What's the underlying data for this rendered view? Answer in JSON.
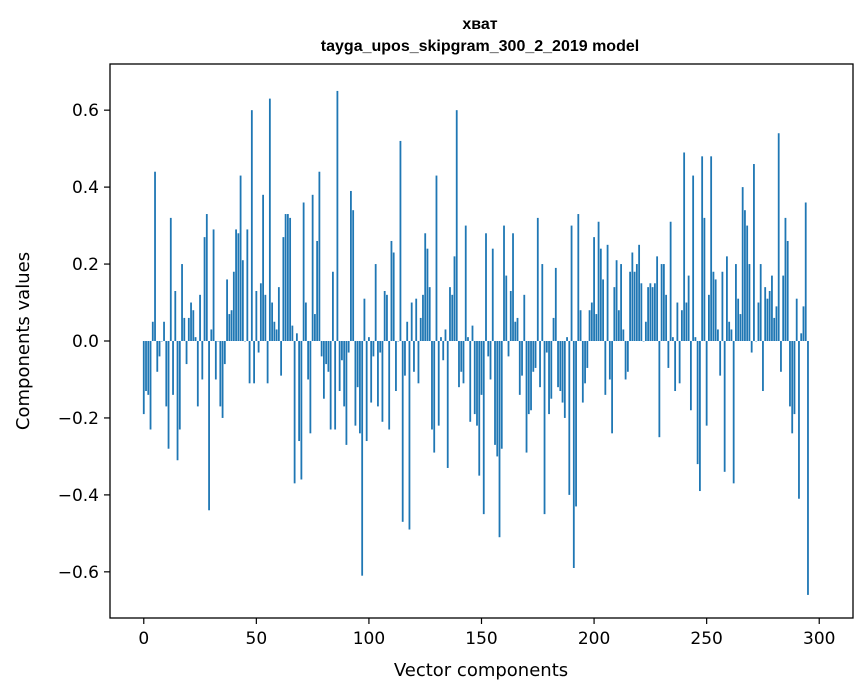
{
  "chart_data": {
    "type": "bar",
    "title": "хват",
    "subtitle": "tayga_upos_skipgram_300_2_2019 model",
    "xlabel": "Vector components",
    "ylabel": "Components values",
    "xlim": [
      -15,
      315
    ],
    "ylim": [
      -0.72,
      0.72
    ],
    "xticks": [
      0,
      50,
      100,
      150,
      200,
      250,
      300
    ],
    "yticks": [
      -0.6,
      -0.4,
      -0.2,
      0.0,
      0.2,
      0.4,
      0.6
    ],
    "ytick_labels": [
      "−0.6",
      "−0.4",
      "−0.2",
      "0.0",
      "0.2",
      "0.4",
      "0.6"
    ],
    "bar_color": "#1f77b4",
    "values": [
      -0.19,
      -0.13,
      -0.14,
      -0.23,
      0.05,
      0.44,
      -0.08,
      -0.04,
      0.0,
      0.05,
      -0.17,
      -0.28,
      0.32,
      -0.14,
      0.13,
      -0.31,
      -0.23,
      0.2,
      0.06,
      -0.06,
      0.06,
      0.1,
      0.08,
      0.01,
      -0.17,
      0.12,
      -0.1,
      0.27,
      0.33,
      -0.44,
      0.03,
      0.29,
      -0.1,
      0.0,
      -0.17,
      -0.2,
      -0.06,
      0.16,
      0.07,
      0.08,
      0.18,
      0.29,
      0.28,
      0.43,
      0.21,
      0.0,
      0.29,
      -0.11,
      0.6,
      -0.11,
      0.13,
      -0.03,
      0.15,
      0.38,
      0.12,
      -0.11,
      0.63,
      0.1,
      0.05,
      0.03,
      0.14,
      -0.09,
      0.27,
      0.33,
      0.33,
      0.32,
      0.04,
      -0.37,
      0.02,
      -0.26,
      -0.36,
      0.36,
      0.1,
      -0.1,
      -0.24,
      0.38,
      0.07,
      0.26,
      0.44,
      -0.04,
      -0.15,
      -0.06,
      -0.08,
      -0.23,
      0.18,
      -0.23,
      0.65,
      -0.13,
      -0.05,
      -0.17,
      -0.27,
      -0.03,
      0.39,
      0.34,
      -0.22,
      -0.12,
      -0.24,
      -0.61,
      0.11,
      -0.26,
      0.01,
      -0.16,
      -0.04,
      0.2,
      -0.17,
      -0.03,
      -0.21,
      0.13,
      0.12,
      -0.23,
      0.26,
      0.23,
      -0.13,
      0.0,
      0.52,
      -0.47,
      -0.09,
      0.05,
      -0.49,
      0.1,
      -0.08,
      0.11,
      -0.11,
      0.06,
      0.12,
      0.28,
      0.24,
      0.14,
      -0.23,
      -0.29,
      0.43,
      -0.22,
      0.01,
      -0.05,
      0.03,
      -0.33,
      0.14,
      0.12,
      0.22,
      0.6,
      -0.12,
      -0.08,
      -0.11,
      0.3,
      0.01,
      -0.21,
      0.04,
      -0.19,
      -0.22,
      -0.35,
      -0.14,
      -0.45,
      0.28,
      -0.04,
      -0.1,
      0.24,
      -0.27,
      -0.3,
      -0.51,
      -0.28,
      0.3,
      0.17,
      -0.04,
      0.13,
      0.28,
      0.05,
      0.06,
      -0.14,
      -0.09,
      0.12,
      -0.29,
      -0.19,
      -0.18,
      -0.08,
      -0.07,
      0.32,
      -0.12,
      0.2,
      -0.45,
      -0.03,
      -0.19,
      -0.15,
      0.06,
      0.19,
      -0.12,
      -0.13,
      -0.16,
      -0.2,
      0.01,
      -0.4,
      0.3,
      -0.59,
      -0.43,
      0.33,
      0.08,
      -0.16,
      -0.11,
      -0.07,
      0.08,
      0.1,
      0.27,
      0.07,
      0.31,
      0.24,
      0.16,
      -0.14,
      0.25,
      -0.1,
      -0.24,
      0.14,
      0.21,
      0.08,
      0.2,
      0.03,
      -0.1,
      -0.08,
      0.18,
      0.23,
      0.18,
      0.2,
      0.25,
      0.15,
      0.0,
      0.05,
      0.14,
      0.15,
      0.14,
      0.15,
      0.22,
      -0.25,
      0.2,
      0.2,
      0.12,
      -0.07,
      0.31,
      0.01,
      -0.13,
      0.1,
      -0.11,
      0.08,
      0.49,
      0.1,
      0.17,
      -0.18,
      0.43,
      0.01,
      -0.32,
      -0.39,
      0.48,
      0.32,
      -0.22,
      0.12,
      0.48,
      0.18,
      0.16,
      0.03,
      -0.09,
      0.18,
      -0.34,
      0.22,
      0.05,
      0.03,
      -0.37,
      0.2,
      0.11,
      0.07,
      0.4,
      0.34,
      0.3,
      0.2,
      -0.03,
      0.46,
      0.0,
      0.1,
      0.2,
      -0.13,
      0.14,
      0.11,
      0.13,
      0.17,
      0.06,
      0.09,
      0.54,
      -0.08,
      0.17,
      0.32,
      0.26,
      -0.17,
      -0.24,
      -0.19,
      0.11,
      -0.41,
      0.02,
      0.09,
      0.36,
      -0.66
    ]
  }
}
